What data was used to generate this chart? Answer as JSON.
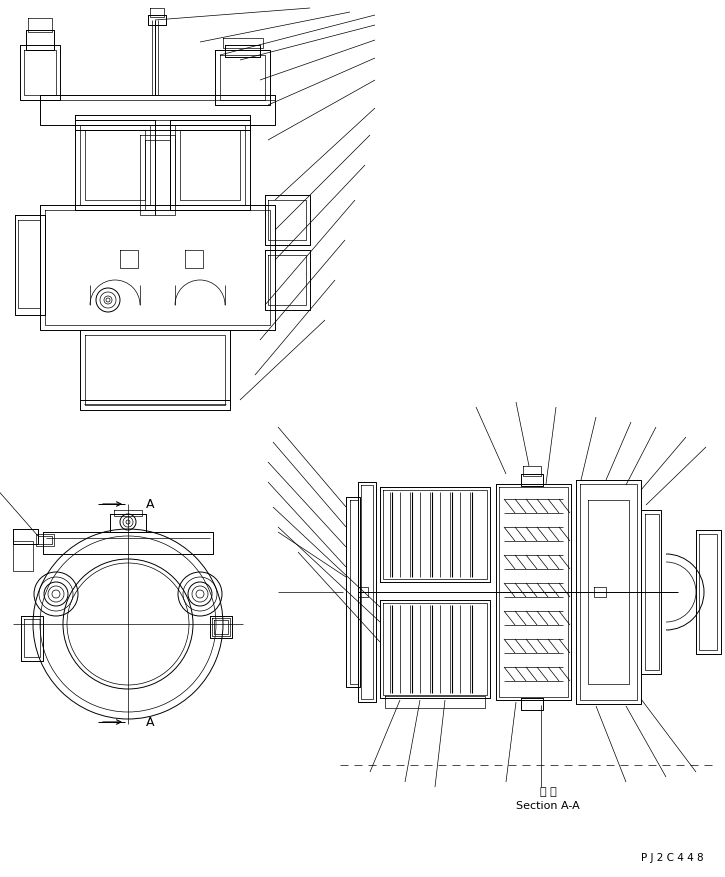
{
  "bg_color": "#ffffff",
  "line_color": "#000000",
  "section_label_jp": "断 面",
  "section_label_en": "Section A-A",
  "drawing_number": "P J 2 C 4 4 8",
  "figsize": [
    7.25,
    8.77
  ],
  "dpi": 100
}
